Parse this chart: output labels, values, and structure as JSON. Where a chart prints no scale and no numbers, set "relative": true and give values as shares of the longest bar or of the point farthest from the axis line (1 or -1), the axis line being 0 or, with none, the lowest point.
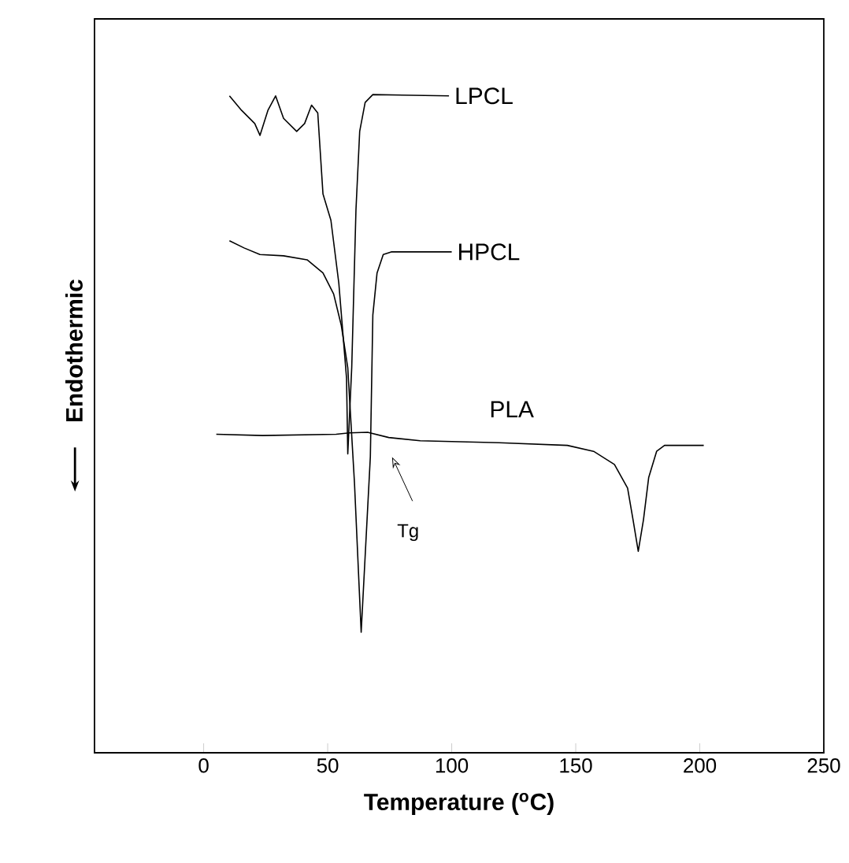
{
  "chart_data": {
    "type": "line",
    "relative": true,
    "xlabel": "Temperature ($^{o}$C)",
    "ylabel": "Endothermic",
    "xlim": [
      -44,
      250
    ],
    "xticks": [
      0,
      50,
      100,
      150,
      200,
      250
    ],
    "grid": false,
    "marker": "none",
    "line_style": "solid",
    "series": [
      {
        "name": "LPCL",
        "color": "#000000",
        "x": [
          10.4,
          15.3,
          20.6,
          22.7,
          25.9,
          29.0,
          32.2,
          37.5,
          40.7,
          43.5,
          46.0,
          48.1,
          51.3,
          54.5,
          57.6,
          58.1,
          59.7,
          61.4,
          62.9,
          65.1,
          68.2,
          98.9
        ],
        "values": [
          0.998,
          0.976,
          0.956,
          0.938,
          0.976,
          0.998,
          0.964,
          0.944,
          0.956,
          0.984,
          0.972,
          0.849,
          0.809,
          0.713,
          0.569,
          0.454,
          0.586,
          0.825,
          0.944,
          0.988,
          1.0,
          0.998
        ]
      },
      {
        "name": "HPCL",
        "color": "#000000",
        "x": [
          10.4,
          16.3,
          22.7,
          32.2,
          41.7,
          48.1,
          52.4,
          55.5,
          58.1,
          60.8,
          63.5,
          67.2,
          68.2,
          69.9,
          72.4,
          75.6,
          100
        ],
        "values": [
          0.778,
          0.767,
          0.757,
          0.755,
          0.749,
          0.729,
          0.697,
          0.649,
          0.585,
          0.41,
          0.183,
          0.45,
          0.665,
          0.729,
          0.757,
          0.761,
          0.761
        ]
      },
      {
        "name": "PLA",
        "color": "#000000",
        "x": [
          5.1,
          23.8,
          53.4,
          58.7,
          66.1,
          74.6,
          87.3,
          119.1,
          146.6,
          157.2,
          165.6,
          170.9,
          173.1,
          175.2,
          177.3,
          179.4,
          182.6,
          185.8,
          201.6
        ],
        "values": [
          0.484,
          0.482,
          0.484,
          0.486,
          0.487,
          0.479,
          0.474,
          0.471,
          0.467,
          0.458,
          0.438,
          0.402,
          0.354,
          0.306,
          0.354,
          0.418,
          0.458,
          0.467,
          0.467
        ]
      }
    ],
    "annotations": [
      "Tg"
    ]
  }
}
